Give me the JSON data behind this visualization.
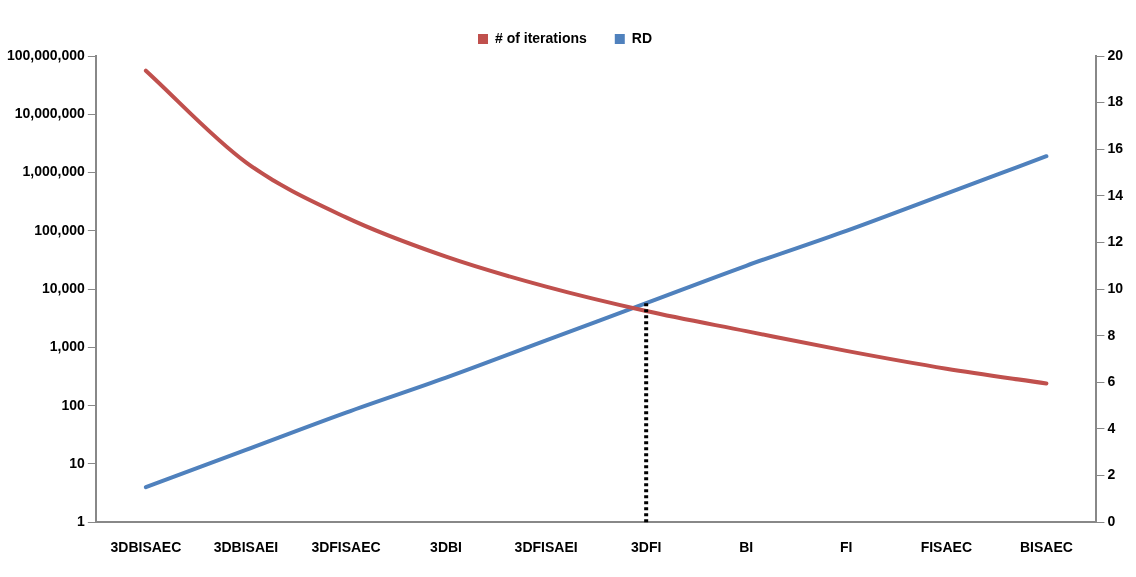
{
  "chart_data": {
    "type": "line",
    "categories": [
      "3DBISAEC",
      "3DBISAEI",
      "3DFISAEC",
      "3DBI",
      "3DFISAEI",
      "3DFI",
      "BI",
      "FI",
      "FISAEC",
      "BISAEC"
    ],
    "series": [
      {
        "name": "# of iterations",
        "color": "#c0504d",
        "values": [
          56000000,
          1500000,
          170000,
          36000,
          11000,
          4200,
          1900,
          870,
          430,
          240
        ]
      },
      {
        "name": "RD",
        "color": "#4f81bd",
        "axis": "y2",
        "values": [
          1.5,
          3.1,
          4.7,
          6.2,
          7.8,
          9.4,
          11.0,
          12.5,
          14.1,
          15.7
        ]
      }
    ],
    "log": "y",
    "ylim": [
      1,
      100000000
    ],
    "yticks": [
      {
        "value": 1,
        "label": "1"
      },
      {
        "value": 10,
        "label": "10"
      },
      {
        "value": 100,
        "label": "100"
      },
      {
        "value": 1000,
        "label": "1,000"
      },
      {
        "value": 10000,
        "label": "10,000"
      },
      {
        "value": 100000,
        "label": "100,000"
      },
      {
        "value": 1000000,
        "label": "1,000,000"
      },
      {
        "value": 10000000,
        "label": "10,000,000"
      },
      {
        "value": 100000000,
        "label": "100,000,000"
      }
    ],
    "y2lim": [
      0,
      20
    ],
    "y2ticks": [
      0,
      2,
      4,
      6,
      8,
      10,
      12,
      14,
      16,
      18,
      20
    ],
    "ref_lines": [
      {
        "axis": "x",
        "value": "3DFI",
        "color": "#000000",
        "line_style": "dotted"
      }
    ],
    "legend": "top",
    "grid": false,
    "marker": "none",
    "line_style": "solid"
  }
}
